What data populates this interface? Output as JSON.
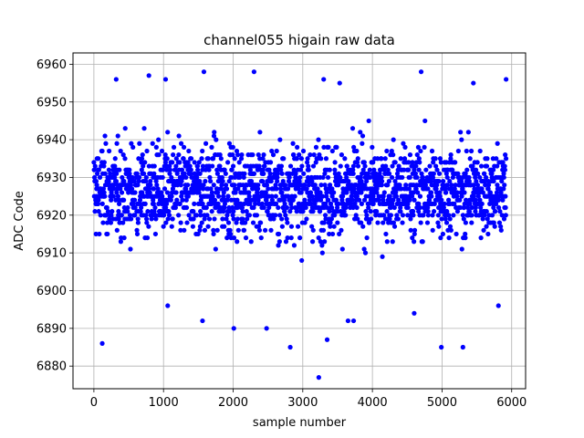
{
  "chart_data": {
    "type": "scatter",
    "title": "channel055 higain raw data",
    "xlabel": "sample number",
    "ylabel": "ADC Code",
    "xlim": [
      -300,
      6200
    ],
    "ylim": [
      6874,
      6963
    ],
    "xticks": [
      0,
      1000,
      2000,
      3000,
      4000,
      5000,
      6000
    ],
    "yticks": [
      6880,
      6890,
      6900,
      6910,
      6920,
      6930,
      6940,
      6950,
      6960
    ],
    "grid": true,
    "marker_color": "#0000ff",
    "series": [
      {
        "n_samples": 5920,
        "x_start": 0,
        "central_band": [
          6915,
          6938
        ],
        "typical_min": 6900,
        "typical_max": 6946,
        "outliers": [
          {
            "x": 3230,
            "y": 6877
          },
          {
            "x": 5300,
            "y": 6885
          },
          {
            "x": 2010,
            "y": 6890
          },
          {
            "x": 2480,
            "y": 6890
          },
          {
            "x": 1560,
            "y": 6892
          },
          {
            "x": 3650,
            "y": 6892
          },
          {
            "x": 3730,
            "y": 6892
          },
          {
            "x": 4600,
            "y": 6894
          },
          {
            "x": 4990,
            "y": 6885
          },
          {
            "x": 120,
            "y": 6886
          },
          {
            "x": 320,
            "y": 6956
          },
          {
            "x": 790,
            "y": 6957
          },
          {
            "x": 1030,
            "y": 6956
          },
          {
            "x": 1580,
            "y": 6958
          },
          {
            "x": 2300,
            "y": 6958
          },
          {
            "x": 3300,
            "y": 6956
          },
          {
            "x": 3530,
            "y": 6955
          },
          {
            "x": 4700,
            "y": 6958
          },
          {
            "x": 5920,
            "y": 6956
          },
          {
            "x": 5450,
            "y": 6955
          },
          {
            "x": 5810,
            "y": 6896
          },
          {
            "x": 1060,
            "y": 6896
          },
          {
            "x": 2820,
            "y": 6885
          },
          {
            "x": 3350,
            "y": 6887
          }
        ]
      }
    ]
  }
}
